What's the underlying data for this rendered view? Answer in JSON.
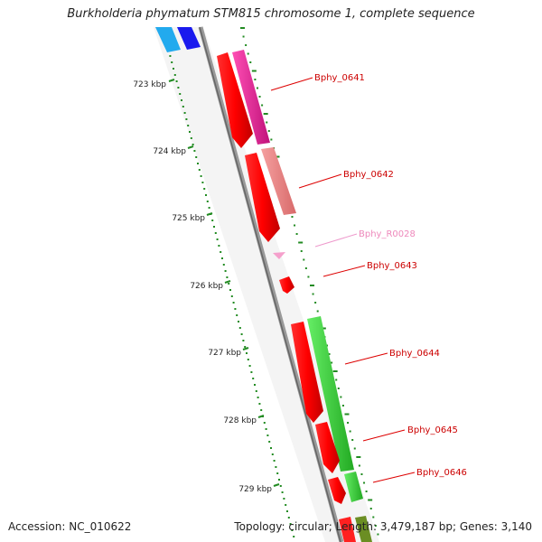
{
  "title": "Burkholderia phymatum STM815 chromosome 1, complete sequence",
  "footer": {
    "accession": "Accession: NC_010622",
    "topology": "Topology: circular; Length: 3,479,187 bp; Genes: 3,140"
  },
  "ruler": {
    "ticks": [
      "723 kbp",
      "724 kbp",
      "725 kbp",
      "726 kbp",
      "727 kbp",
      "728 kbp",
      "729 kbp"
    ]
  },
  "genes": [
    {
      "label": "Bphy_0641",
      "color": "#cc0000"
    },
    {
      "label": "Bphy_0642",
      "color": "#cc0000"
    },
    {
      "label": "Bphy_R0028",
      "color": "#ee88bb"
    },
    {
      "label": "Bphy_0643",
      "color": "#cc0000"
    },
    {
      "label": "Bphy_0644",
      "color": "#cc0000"
    },
    {
      "label": "Bphy_0645",
      "color": "#cc0000"
    },
    {
      "label": "Bphy_0646",
      "color": "#cc0000"
    }
  ],
  "colors": {
    "backbone": "#888888",
    "cds": "#ff0000",
    "cog_magenta": "#e8259a",
    "cog_salmon": "#ee8888",
    "cog_green": "#33cc33",
    "cog_blue": "#1a1aee",
    "cog_cyan": "#22aaee",
    "rrna_pink": "#f5a0cc",
    "ruler": "#228b22"
  }
}
